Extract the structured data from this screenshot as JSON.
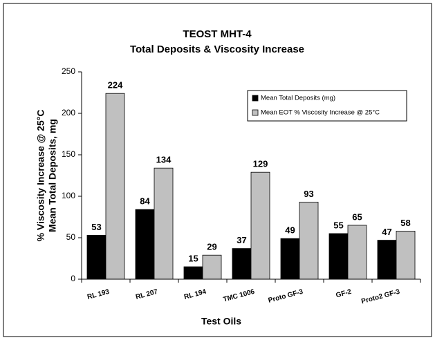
{
  "chart_data": {
    "type": "bar",
    "title": "TEOST MHT-4",
    "subtitle": "Total Deposits & Viscosity Increase",
    "ylabel": [
      "% Viscosity Increase @ 25°C",
      "Mean Total Deposits, mg"
    ],
    "xlabel": "Test Oils",
    "categories": [
      "RL 193",
      "RL 207",
      "RL 194",
      "TMC 1006",
      "Proto GF-3",
      "GF-2",
      "Proto2 GF-3"
    ],
    "series": [
      {
        "name": "Mean Total Deposits (mg)",
        "color": "#000000",
        "values": [
          53,
          84,
          15,
          37,
          49,
          55,
          47
        ]
      },
      {
        "name": "Mean EOT % Viscosity Increase @ 25°C",
        "color": "#c0c0c0",
        "values": [
          224,
          134,
          29,
          129,
          93,
          65,
          58
        ]
      }
    ],
    "ylim": [
      0,
      250
    ],
    "yticks": [
      0,
      50,
      100,
      150,
      200,
      250
    ],
    "grid": false,
    "legend": "upper right"
  }
}
